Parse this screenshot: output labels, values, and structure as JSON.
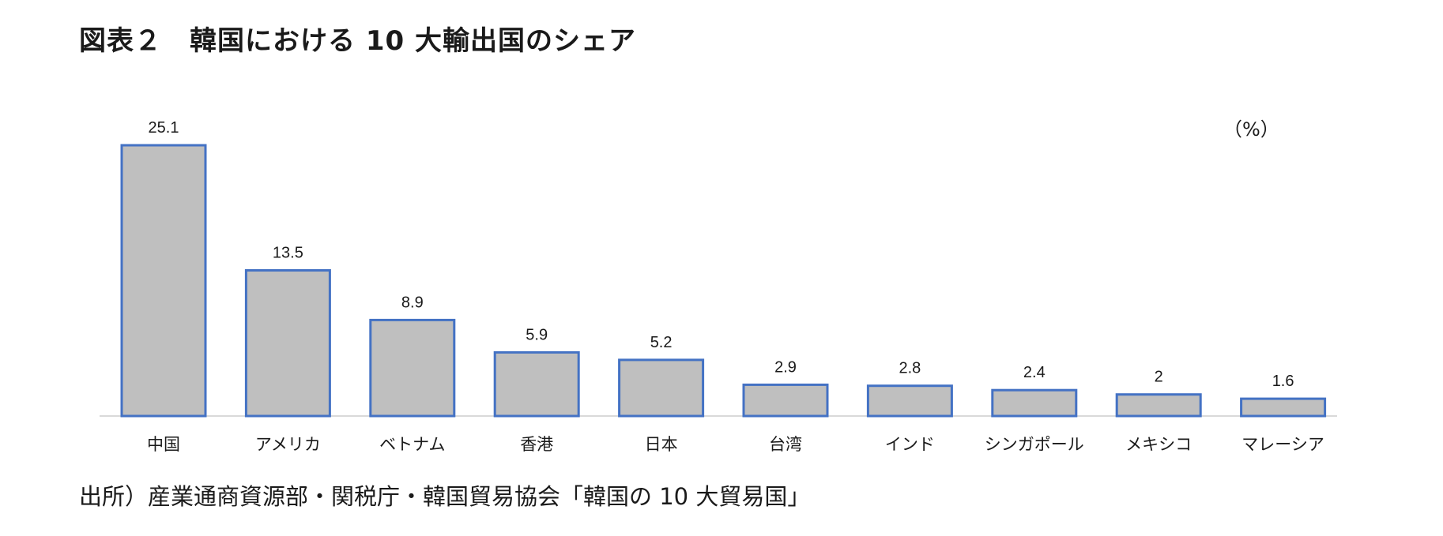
{
  "title": "図表２　韓国における 10 大輸出国のシェア",
  "unit": "（%）",
  "source": "出所）産業通商資源部・関税庁・韓国貿易協会「韓国の 10 大貿易国」",
  "colors": {
    "bar_fill": "#bfbfbf",
    "bar_stroke": "#4472c4",
    "axis": "#d9d9d9"
  },
  "chart_data": {
    "type": "bar",
    "title": "図表２　韓国における 10 大輸出国のシェア",
    "ylabel": "（%）",
    "xlabel": "",
    "categories": [
      "中国",
      "アメリカ",
      "ベトナム",
      "香港",
      "日本",
      "台湾",
      "インド",
      "シンガポール",
      "メキシコ",
      "マレーシア"
    ],
    "values": [
      25.1,
      13.5,
      8.9,
      5.9,
      5.2,
      2.9,
      2.8,
      2.4,
      2,
      1.6
    ],
    "value_labels": [
      "25.1",
      "13.5",
      "8.9",
      "5.9",
      "5.2",
      "2.9",
      "2.8",
      "2.4",
      "2",
      "1.6"
    ],
    "ylim": [
      0,
      25.1
    ],
    "grid": false,
    "legend": "none",
    "data_labels": true
  }
}
